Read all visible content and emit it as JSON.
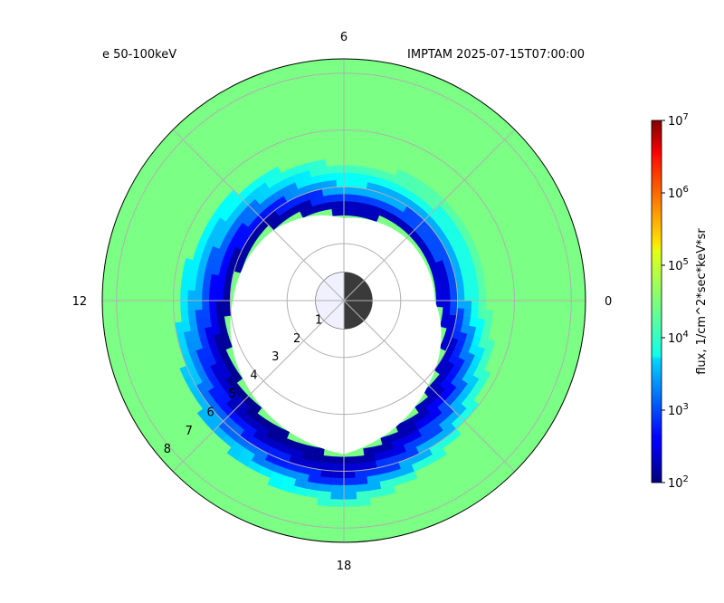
{
  "chart_data": {
    "type": "heatmap",
    "projection": "polar",
    "title_left": "e 50-100keV",
    "title_right": "IMPTAM 2025-07-15T07:00:00",
    "mlt_labels": [
      {
        "text": "0",
        "mlt": 0
      },
      {
        "text": "6",
        "mlt": 6
      },
      {
        "text": "12",
        "mlt": 12
      },
      {
        "text": "18",
        "mlt": 18
      }
    ],
    "radial_ticks": [
      "1",
      "2",
      "3",
      "4",
      "5",
      "6",
      "7",
      "8"
    ],
    "radial_tick_values": [
      1,
      2,
      3,
      4,
      5,
      6,
      7,
      8
    ],
    "r_max": 8.5,
    "grid": true,
    "colorbar": {
      "label": "flux, 1/cm^2*sec*keV*sr",
      "scale": "log",
      "colormap": "jet",
      "min": 100,
      "max": 10000000,
      "ticks": [
        {
          "base": "10",
          "exp": "2",
          "value": 100
        },
        {
          "base": "10",
          "exp": "3",
          "value": 1000
        },
        {
          "base": "10",
          "exp": "4",
          "value": 10000
        },
        {
          "base": "10",
          "exp": "5",
          "value": 100000
        },
        {
          "base": "10",
          "exp": "6",
          "value": 1000000
        },
        {
          "base": "10",
          "exp": "7",
          "value": 10000000
        }
      ]
    },
    "background_flux": 30000,
    "inner_boundary": [
      {
        "mlt": 0,
        "r": 3.2
      },
      {
        "mlt": 3,
        "r": 3.1
      },
      {
        "mlt": 6,
        "r": 2.9
      },
      {
        "mlt": 9,
        "r": 3.5
      },
      {
        "mlt": 12,
        "r": 3.9
      },
      {
        "mlt": 15,
        "r": 4.6
      },
      {
        "mlt": 18,
        "r": 5.4
      },
      {
        "mlt": 21,
        "r": 4.2
      }
    ],
    "edge_flux": [
      {
        "mlt": 0,
        "fluxes": [
          300,
          1000,
          3000,
          10000,
          20000
        ]
      },
      {
        "mlt": 3,
        "fluxes": [
          200,
          1000,
          3000,
          10000,
          20000
        ]
      },
      {
        "mlt": 6,
        "fluxes": [
          200,
          800,
          3000,
          8000,
          15000
        ]
      },
      {
        "mlt": 9,
        "fluxes": [
          150,
          500,
          1500,
          4000,
          8000
        ]
      },
      {
        "mlt": 12,
        "fluxes": [
          150,
          400,
          1000,
          3000,
          6000
        ]
      },
      {
        "mlt": 15,
        "fluxes": [
          120,
          200,
          500,
          1200,
          3000
        ]
      },
      {
        "mlt": 18,
        "fluxes": [
          150,
          250,
          700,
          3000,
          15000
        ]
      },
      {
        "mlt": 21,
        "fluxes": [
          200,
          400,
          1000,
          3000,
          10000
        ]
      }
    ],
    "earth": {
      "day_color": "#f0f0ff",
      "night_color": "#3a3a3a"
    }
  }
}
